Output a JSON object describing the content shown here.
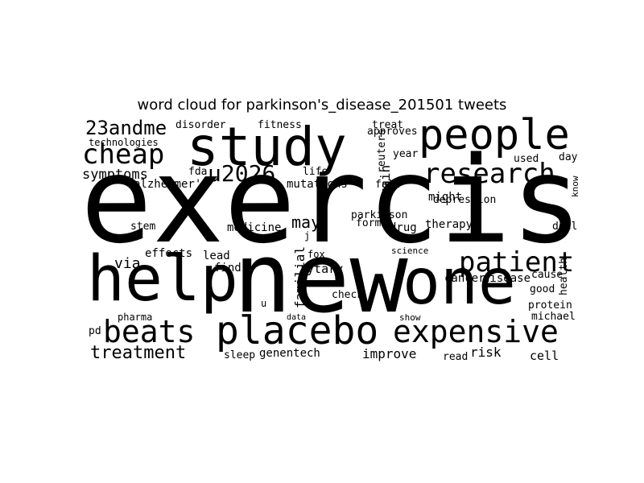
{
  "title": "word cloud for parkinson's_disease_201501 tweets",
  "colors": {
    "background": "#ffffff",
    "text": "#000000"
  },
  "words": [
    {
      "text": "exercise",
      "weight": 100
    },
    {
      "text": "new",
      "weight": 84
    },
    {
      "text": "help",
      "weight": 56
    },
    {
      "text": "one",
      "weight": 56
    },
    {
      "text": "study",
      "weight": 50
    },
    {
      "text": "people",
      "weight": 42
    },
    {
      "text": "placebo",
      "weight": 38
    },
    {
      "text": "beats",
      "weight": 32
    },
    {
      "text": "expensive",
      "weight": 32
    },
    {
      "text": "cheap",
      "weight": 28
    },
    {
      "text": "patient",
      "weight": 28
    },
    {
      "text": "research",
      "weight": 28
    },
    {
      "text": "u2026",
      "weight": 24
    },
    {
      "text": "23andme",
      "weight": 20
    },
    {
      "text": "treatment",
      "weight": 20
    },
    {
      "text": "symptoms",
      "weight": 16
    },
    {
      "text": "may",
      "weight": 15
    },
    {
      "text": "via",
      "weight": 15
    },
    {
      "text": "familial",
      "weight": 14
    },
    {
      "text": "brain",
      "weight": 14
    },
    {
      "text": "improve",
      "weight": 13
    },
    {
      "text": "alzheimer's",
      "weight": 12
    },
    {
      "text": "mutations",
      "weight": 12
    },
    {
      "text": "disease",
      "weight": 12
    },
    {
      "text": "cancer",
      "weight": 12
    },
    {
      "text": "cell",
      "weight": 12
    },
    {
      "text": "risk",
      "weight": 12
    },
    {
      "text": "depression",
      "weight": 11
    },
    {
      "text": "fitness",
      "weight": 11
    },
    {
      "text": "disorder",
      "weight": 11
    },
    {
      "text": "technologies",
      "weight": 11
    },
    {
      "text": "effects",
      "weight": 11
    },
    {
      "text": "rytary",
      "weight": 11
    },
    {
      "text": "genentech",
      "weight": 11
    },
    {
      "text": "medicine",
      "weight": 11
    },
    {
      "text": "health",
      "weight": 11
    },
    {
      "text": "drug",
      "weight": 11
    },
    {
      "text": "therapy",
      "weight": 11
    },
    {
      "text": "parkinson",
      "weight": 10
    },
    {
      "text": "protein",
      "weight": 10
    },
    {
      "text": "michael",
      "weight": 10
    },
    {
      "text": "fda",
      "weight": 10
    },
    {
      "text": "life",
      "weight": 10
    },
    {
      "text": "lead",
      "weight": 10
    },
    {
      "text": "find",
      "weight": 10
    },
    {
      "text": "reuters",
      "weight": 10
    },
    {
      "text": "approves",
      "weight": 10
    },
    {
      "text": "treat",
      "weight": 10
    },
    {
      "text": "year",
      "weight": 10
    },
    {
      "text": "fall",
      "weight": 10
    },
    {
      "text": "might",
      "weight": 10
    },
    {
      "text": "used",
      "weight": 10
    },
    {
      "text": "day",
      "weight": 9
    },
    {
      "text": "know",
      "weight": 9
    },
    {
      "text": "deal",
      "weight": 9
    },
    {
      "text": "good",
      "weight": 9
    },
    {
      "text": "cause",
      "weight": 9
    },
    {
      "text": "sleep",
      "weight": 9
    },
    {
      "text": "check",
      "weight": 9
    },
    {
      "text": "read",
      "weight": 9
    },
    {
      "text": "show",
      "weight": 8
    },
    {
      "text": "science",
      "weight": 8
    },
    {
      "text": "pharma",
      "weight": 8
    },
    {
      "text": "stem",
      "weight": 8
    },
    {
      "text": "pd",
      "weight": 8
    },
    {
      "text": "form",
      "weight": 8
    },
    {
      "text": "fox",
      "weight": 8
    },
    {
      "text": "data",
      "weight": 7
    },
    {
      "text": "u",
      "weight": 8
    },
    {
      "text": "j",
      "weight": 8
    }
  ]
}
